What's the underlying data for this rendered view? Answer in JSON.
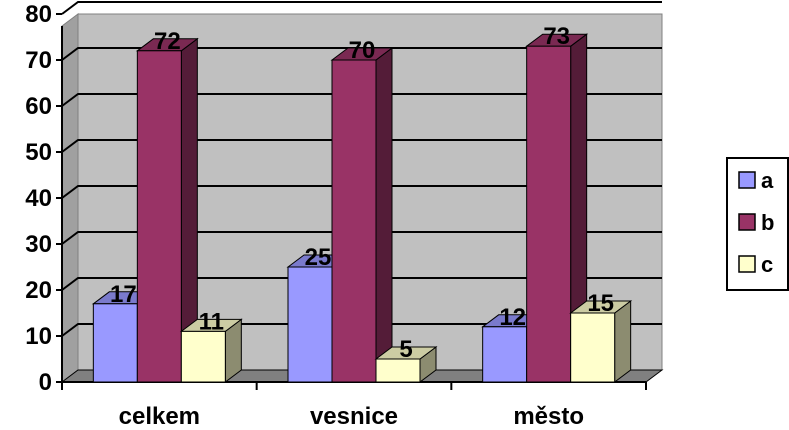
{
  "chart_data": {
    "type": "bar",
    "categories": [
      "celkem",
      "vesnice",
      "město"
    ],
    "series": [
      {
        "name": "a",
        "values": [
          17,
          25,
          12
        ],
        "color": "#9999ff"
      },
      {
        "name": "b",
        "values": [
          72,
          70,
          73
        ],
        "color": "#993366"
      },
      {
        "name": "c",
        "values": [
          11,
          5,
          15
        ],
        "color": "#ffffcc"
      }
    ],
    "ylim": [
      0,
      80
    ],
    "yticks": [
      0,
      10,
      20,
      30,
      40,
      50,
      60,
      70,
      80
    ],
    "grid": true,
    "legend_position": "right",
    "plot_background": "#c0c0c0",
    "title": "",
    "xlabel": "",
    "ylabel": ""
  }
}
